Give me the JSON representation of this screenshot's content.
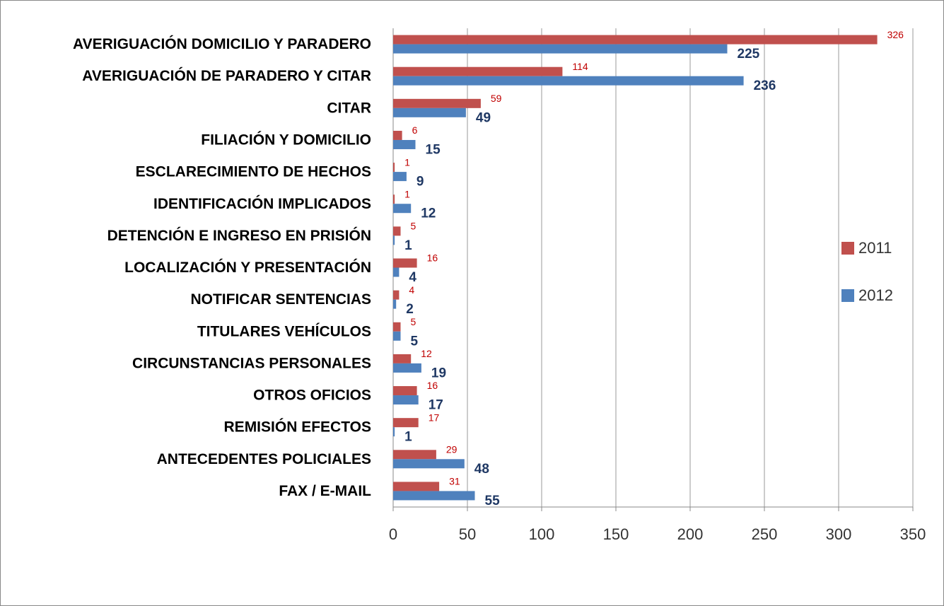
{
  "chart_data": {
    "type": "hbar",
    "categories": [
      "AVERIGUACIÓN DOMICILIO Y PARADERO",
      "AVERIGUACIÓN DE PARADERO Y CITAR",
      "CITAR",
      "FILIACIÓN Y DOMICILIO",
      "ESCLARECIMIENTO DE HECHOS",
      "IDENTIFICACIÓN IMPLICADOS",
      "DETENCIÓN E INGRESO EN PRISIÓN",
      "LOCALIZACIÓN Y PRESENTACIÓN",
      "NOTIFICAR SENTENCIAS",
      "TITULARES VEHÍCULOS",
      "CIRCUNSTANCIAS PERSONALES",
      "OTROS OFICIOS",
      "REMISIÓN EFECTOS",
      "ANTECEDENTES POLICIALES",
      "FAX / E-MAIL"
    ],
    "series": [
      {
        "name": "2011",
        "color": "#c0504d",
        "values": [
          326,
          114,
          59,
          6,
          1,
          1,
          5,
          16,
          4,
          5,
          12,
          16,
          17,
          29,
          31
        ]
      },
      {
        "name": "2012",
        "color": "#4f81bd",
        "values": [
          225,
          236,
          49,
          15,
          9,
          12,
          1,
          4,
          2,
          5,
          19,
          17,
          1,
          48,
          55
        ]
      }
    ],
    "xlim": [
      0,
      350
    ],
    "xticks": [
      0,
      50,
      100,
      150,
      200,
      250,
      300,
      350
    ],
    "grid": true,
    "legend": "right"
  }
}
